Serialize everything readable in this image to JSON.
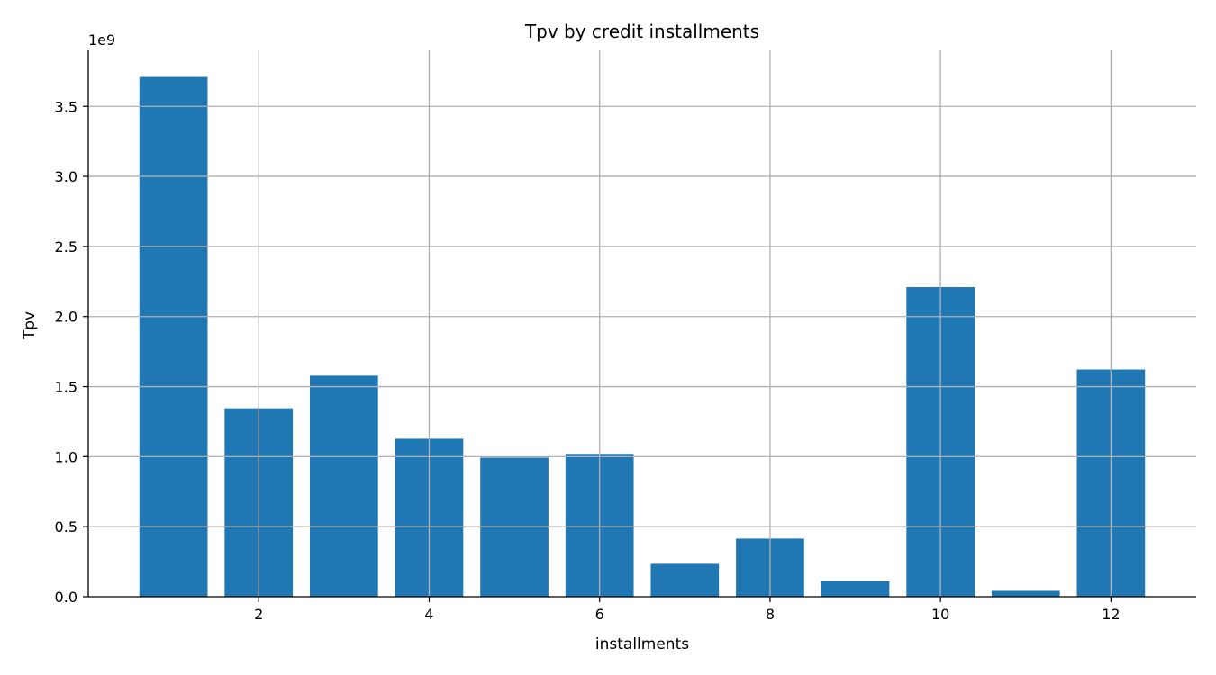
{
  "chart_data": {
    "type": "bar",
    "title": "Tpv by credit installments",
    "xlabel": "installments",
    "ylabel": "Tpv",
    "y_offset_label": "1e9",
    "x": [
      1,
      2,
      3,
      4,
      5,
      6,
      7,
      8,
      9,
      10,
      11,
      12
    ],
    "values": [
      3710000000,
      1345000000,
      1578000000,
      1128000000,
      993000000,
      1020000000,
      235000000,
      415000000,
      110000000,
      2210000000,
      42000000,
      1622000000
    ],
    "xlim": [
      0,
      13
    ],
    "ylim": [
      0,
      3900000000
    ],
    "xticks": [
      2,
      4,
      6,
      8,
      10,
      12
    ],
    "yticks": [
      0,
      500000000,
      1000000000,
      1500000000,
      2000000000,
      2500000000,
      3000000000,
      3500000000
    ],
    "ytick_labels": [
      "0.0",
      "0.5",
      "1.0",
      "1.5",
      "2.0",
      "2.5",
      "3.0",
      "3.5"
    ],
    "bar_color": "#1f77b4",
    "grid": true
  }
}
